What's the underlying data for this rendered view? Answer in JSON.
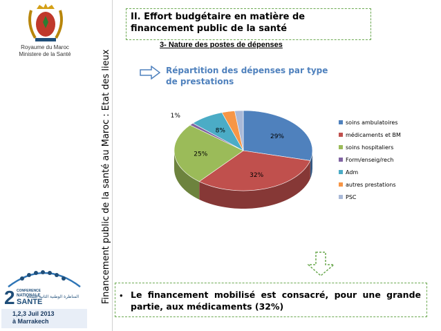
{
  "left": {
    "ministry_line1": "Royaume du Maroc",
    "ministry_line2": "Ministere de la Santé",
    "conference_lines": [
      "2",
      "CONFERENCE",
      "NATIONALE",
      "SANTE"
    ],
    "conference_arabic": "المناظرة الوطنية الثانية للصحة",
    "conference_date": "1,2,3 Juil 2013",
    "conference_place": "à Marrakech"
  },
  "vertical_title": "Financement public de la santé  au Maroc : Etat des lieux",
  "header": {
    "title": "II. Effort budgétaire en matière de financement public de la santé",
    "section": "3- Nature des postes de dépenses"
  },
  "subtitle": "Répartition des dépenses par type de prestations",
  "chart_data": {
    "type": "pie",
    "title": "",
    "slices": [
      {
        "label": "soins ambulatoires",
        "value": 29,
        "text": "29%",
        "color": "#4f81bd"
      },
      {
        "label": "médicaments et BM",
        "value": 32,
        "text": "32%",
        "color": "#c0504d"
      },
      {
        "label": "soins hospitaliers",
        "value": 25,
        "text": "25%",
        "color": "#9bbb59"
      },
      {
        "label": "Form/enseig/rech",
        "value": 1,
        "text": "1%",
        "color": "#8064a2"
      },
      {
        "label": "Adm",
        "value": 8,
        "text": "8%",
        "color": "#4bacc6"
      },
      {
        "label": "autres prestations",
        "value": 3,
        "text": "3%",
        "color": "#f79646"
      },
      {
        "label": "PSC",
        "value": 2,
        "text": "2%",
        "color": "#a9b9d8"
      }
    ],
    "legend_position": "right"
  },
  "conclusion": {
    "bullet": "•",
    "text": "Le financement mobilisé est consacré, pour une grande partie, aux médicaments (32%)"
  },
  "colors": {
    "accent": "#4f81bd",
    "dashed_border": "#6aa84f"
  }
}
